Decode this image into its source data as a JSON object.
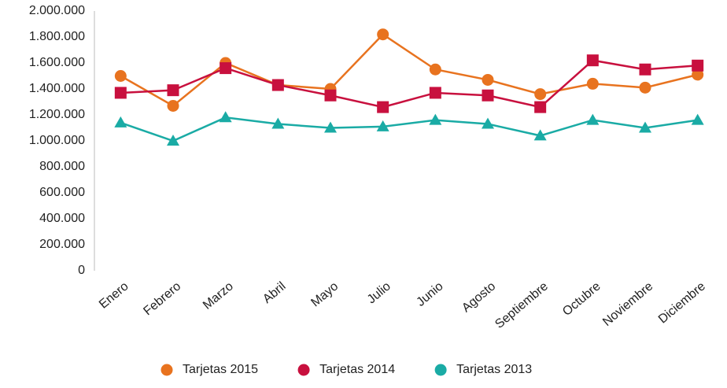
{
  "chart_data": {
    "type": "line",
    "categories": [
      "Enero",
      "Febrero",
      "Marzo",
      "Abril",
      "Mayo",
      "Julio",
      "Junio",
      "Agosto",
      "Septiembre",
      "Octubre",
      "Noviembre",
      "Diciembre"
    ],
    "series": [
      {
        "name": "Tarjetas 2015",
        "color": "#e8731f",
        "marker": "circle",
        "values": [
          1500000,
          1270000,
          1600000,
          1430000,
          1400000,
          1820000,
          1550000,
          1470000,
          1360000,
          1440000,
          1410000,
          1510000
        ]
      },
      {
        "name": "Tarjetas 2014",
        "color": "#c8103e",
        "marker": "square",
        "values": [
          1370000,
          1390000,
          1560000,
          1430000,
          1350000,
          1260000,
          1370000,
          1350000,
          1260000,
          1620000,
          1550000,
          1580000
        ]
      },
      {
        "name": "Tarjetas 2013",
        "color": "#1aaba5",
        "marker": "triangle",
        "values": [
          1140000,
          1000000,
          1180000,
          1130000,
          1100000,
          1110000,
          1160000,
          1130000,
          1040000,
          1160000,
          1100000,
          1160000
        ]
      }
    ],
    "ylim": [
      0,
      2000000
    ],
    "yticks": [
      0,
      {
        "value": 200000,
        "label": "200.000"
      },
      {
        "value": 400000,
        "label": "400.000"
      },
      {
        "value": 600000,
        "label": "600.000"
      },
      {
        "value": 800000,
        "label": "800.000"
      },
      {
        "value": 1000000,
        "label": "1.000.000"
      },
      {
        "value": 1200000,
        "label": "1.200.000"
      },
      {
        "value": 1400000,
        "label": "1.400.000"
      },
      {
        "value": 1600000,
        "label": "1.600.000"
      },
      {
        "value": 1800000,
        "label": "1.800.000"
      },
      {
        "value": 2000000,
        "label": "2.000.000"
      }
    ],
    "grid": false,
    "legend": "bottom"
  }
}
